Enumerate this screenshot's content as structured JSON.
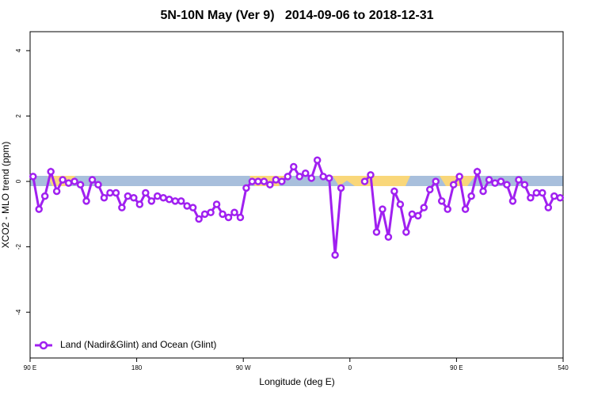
{
  "chart_data": {
    "type": "line",
    "title": "5N-10N May (Ver 9)   2014-09-06 to 2018-12-31",
    "xlabel": "Longitude (deg E)",
    "ylabel": "XCO2 - MLO trend (ppm)",
    "xlim": [
      90,
      540
    ],
    "xticks": [
      {
        "value": 90,
        "label": "90 E"
      },
      180,
      {
        "value": 270,
        "label": "90 W"
      },
      {
        "value": 360,
        "label": "0"
      },
      {
        "value": 450,
        "label": "90 E"
      },
      540
    ],
    "ylim": [
      -5.4,
      4.58
    ],
    "yticks": [
      -4,
      -2,
      0,
      2,
      4
    ],
    "legend": "bottom-left",
    "x": [
      92.5,
      97.5,
      102.5,
      107.5,
      112.5,
      117.5,
      122.5,
      127.5,
      132.5,
      137.5,
      142.5,
      147.5,
      152.5,
      157.5,
      162.5,
      167.5,
      172.5,
      177.5,
      182.5,
      187.5,
      192.5,
      197.5,
      202.5,
      207.5,
      212.5,
      217.5,
      222.5,
      227.5,
      232.5,
      237.5,
      242.5,
      247.5,
      252.5,
      257.5,
      262.5,
      267.5,
      272.5,
      277.5,
      282.5,
      287.5,
      292.5,
      297.5,
      302.5,
      307.5,
      312.5,
      317.5,
      322.5,
      327.5,
      332.5,
      337.5,
      342.5,
      347.5,
      352.5,
      357.5,
      362.5,
      367.5,
      372.5,
      377.5,
      382.5,
      387.5,
      392.5,
      397.5,
      402.5,
      407.5,
      412.5,
      417.5,
      422.5,
      427.5,
      432.5,
      437.5,
      442.5,
      447.5,
      452.5,
      457.5,
      462.5,
      467.5,
      472.5,
      477.5,
      482.5,
      487.5,
      492.5,
      497.5,
      502.5,
      507.5,
      512.5,
      517.5,
      522.5,
      527.5,
      532.5,
      537.5
    ],
    "series": [
      {
        "name": "Land (Nadir&Glint) and Ocean (Glint)",
        "color": "#a020f0",
        "values": [
          0.15,
          -0.85,
          -0.45,
          0.3,
          -0.3,
          0.05,
          -0.05,
          0,
          -0.1,
          -0.6,
          0.05,
          -0.1,
          -0.5,
          -0.35,
          -0.35,
          -0.8,
          -0.45,
          -0.5,
          -0.7,
          -0.35,
          -0.6,
          -0.45,
          -0.5,
          -0.55,
          -0.6,
          -0.6,
          -0.75,
          -0.8,
          -1.15,
          -1.0,
          -0.95,
          -0.7,
          -1.0,
          -1.1,
          -0.95,
          -1.1,
          -0.2,
          0,
          0,
          0,
          -0.1,
          0.05,
          0,
          0.15,
          0.45,
          0.15,
          0.25,
          0.1,
          0.65,
          0.15,
          0.1,
          -2.25,
          -0.2,
          null,
          null,
          null,
          0,
          0.2,
          -1.55,
          -0.85,
          -1.7,
          -0.3,
          -0.7,
          -1.55,
          -1.0,
          -1.05,
          -0.8,
          -0.25,
          0,
          -0.6,
          -0.85,
          -0.1,
          0.15,
          -0.85,
          -0.45,
          0.3,
          -0.3,
          0.05,
          -0.05,
          0,
          -0.1,
          -0.6,
          0.05,
          -0.1,
          -0.5,
          -0.35,
          -0.35,
          -0.8,
          -0.45,
          -0.5
        ]
      }
    ]
  }
}
